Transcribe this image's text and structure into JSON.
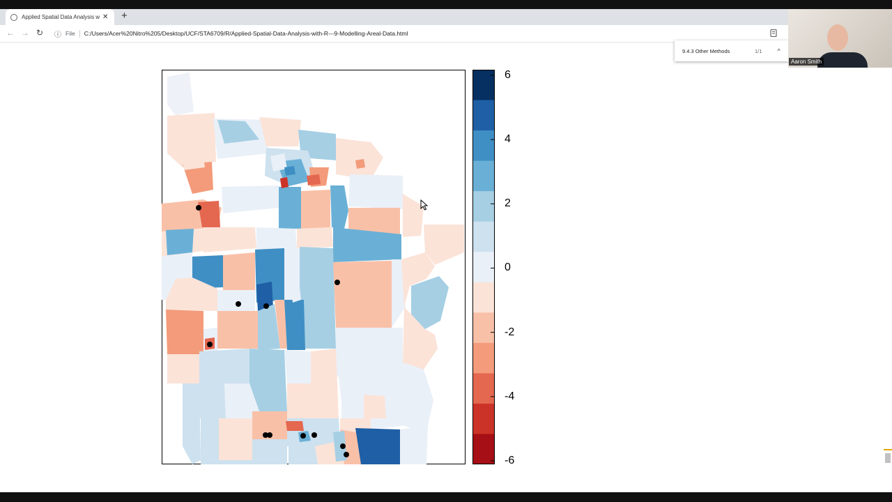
{
  "browser": {
    "tab_title": "Applied Spatial Data Analysis wi",
    "tab_close": "✕",
    "new_tab": "+",
    "back": "←",
    "forward": "→",
    "reload": "↻",
    "info_icon": "ⓘ",
    "file_label": "File",
    "url": "C:/Users/Acer%20Nitro%205/Desktop/UCF/STA6709/R/Applied-Spatial-Data-Analysis-with-R---9-Modelling-Areal-Data.html"
  },
  "find_bar": {
    "query": "9.4.3 Other Methods",
    "count": "1/1",
    "up": "^"
  },
  "webcam": {
    "name": "Aaron Smith"
  },
  "legend": {
    "tick_labels": [
      "6",
      "4",
      "2",
      "0",
      "-2",
      "-4",
      "-6"
    ],
    "colors": [
      "#053061",
      "#1f5fa6",
      "#3f8fc4",
      "#6ab0d6",
      "#a6cfe4",
      "#cde1ef",
      "#eaf0f8",
      "#fbe3d8",
      "#f9c0a8",
      "#f39b7a",
      "#e4674f",
      "#cc3328",
      "#a50f15"
    ]
  },
  "chart_data": {
    "type": "heatmap",
    "legend_range": [
      -6,
      6
    ],
    "legend_ticks": [
      6,
      4,
      2,
      0,
      -2,
      -4,
      -6
    ]
  }
}
